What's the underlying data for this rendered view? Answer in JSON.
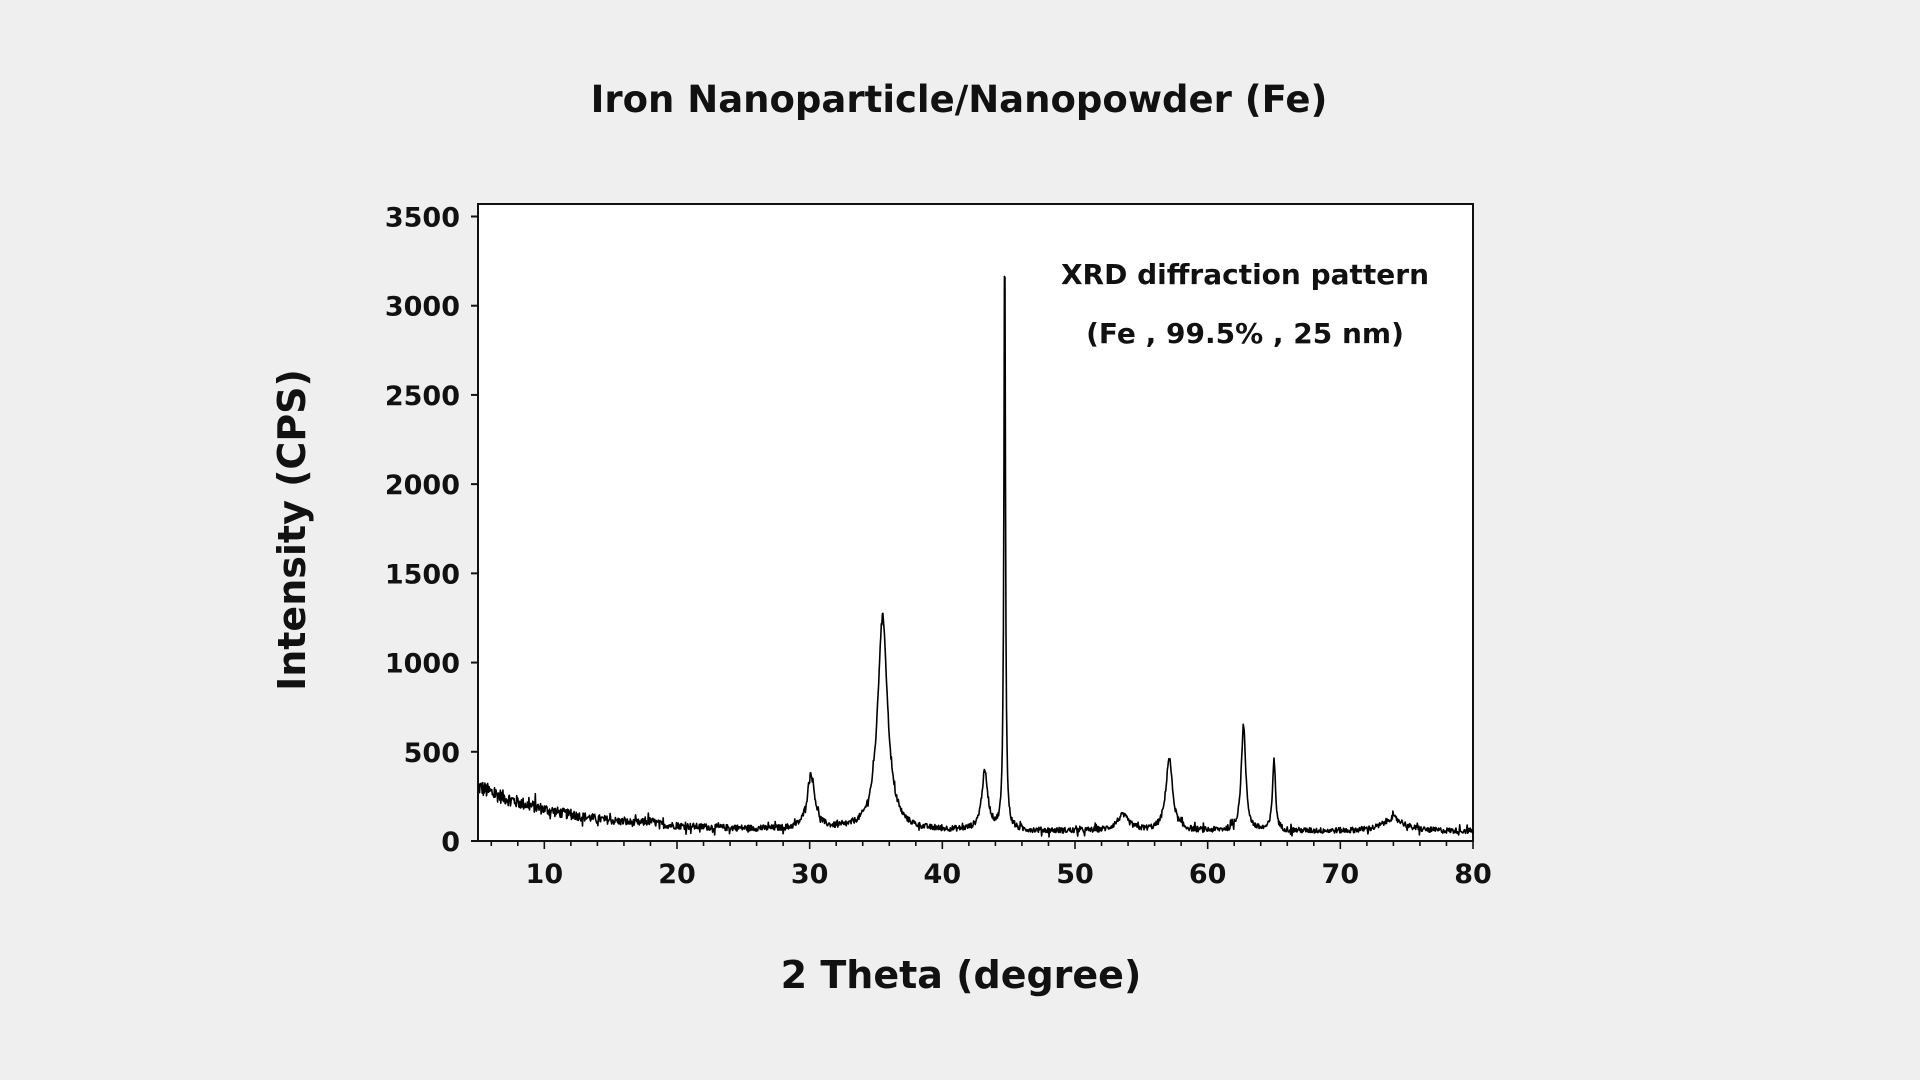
{
  "chart_data": {
    "type": "line",
    "title": "Iron Nanoparticle/Nanopowder (Fe)",
    "xlabel": "2 Theta (degree)",
    "ylabel": "Intensity (CPS)",
    "xlim": [
      5,
      80
    ],
    "ylim": [
      0,
      3570
    ],
    "x_ticks": [
      10,
      20,
      30,
      40,
      50,
      60,
      70,
      80
    ],
    "y_ticks": [
      0,
      500,
      1000,
      1500,
      2000,
      2500,
      3000,
      3500
    ],
    "grid": false,
    "legend": "none",
    "annotations": [
      "XRD diffraction pattern",
      "(Fe , 99.5% , 25 nm)"
    ],
    "line_color": "#000000",
    "series": [
      {
        "peaks": [
          {
            "x": 30.1,
            "y": 370
          },
          {
            "x": 35.5,
            "y": 1260
          },
          {
            "x": 43.2,
            "y": 380
          },
          {
            "x": 44.7,
            "y": 3400
          },
          {
            "x": 53.6,
            "y": 140
          },
          {
            "x": 57.1,
            "y": 460
          },
          {
            "x": 62.7,
            "y": 650
          },
          {
            "x": 65.0,
            "y": 460
          },
          {
            "x": 74.0,
            "y": 130
          }
        ]
      }
    ]
  }
}
